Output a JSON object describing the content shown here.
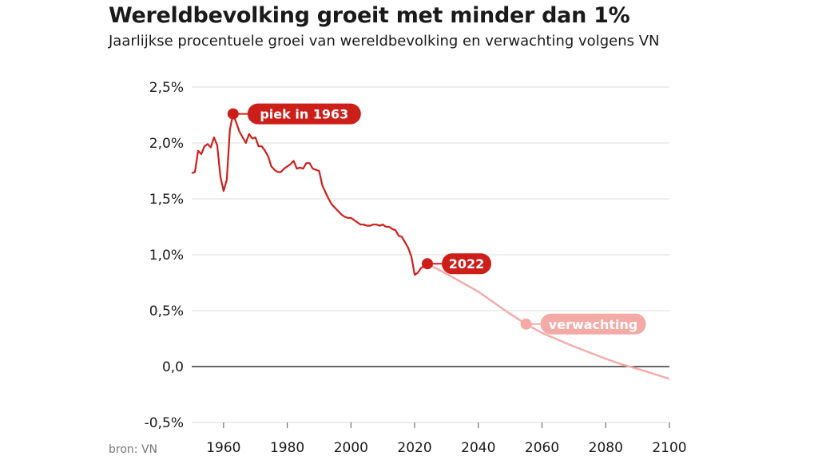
{
  "header": {
    "title": "Wereldbevolking groeit met minder dan 1%",
    "subtitle": "Jaarlijkse procentuele groei van wereldbevolking en verwachting volgens VN"
  },
  "footer": {
    "source": "bron: VN"
  },
  "colors": {
    "historic": "#cc1f1a",
    "forecast": "#f4aaa6",
    "grid": "#dddddd",
    "zero": "#333333"
  },
  "chart_data": {
    "type": "line",
    "title": "Wereldbevolking groeit met minder dan 1%",
    "subtitle": "Jaarlijkse procentuele groei van wereldbevolking en verwachting volgens VN",
    "xlabel": "",
    "ylabel": "",
    "xlim": [
      1950,
      2100
    ],
    "ylim": [
      -0.5,
      2.5
    ],
    "x_ticks": [
      1960,
      1980,
      2000,
      2020,
      2040,
      2060,
      2080,
      2100
    ],
    "x_tick_labels": [
      "1960",
      "1980",
      "2000",
      "2020",
      "2040",
      "2060",
      "2080",
      "2100"
    ],
    "y_ticks": [
      -0.5,
      0,
      0.5,
      1.0,
      1.5,
      2.0,
      2.5
    ],
    "y_tick_labels": [
      "-0,5%",
      "0,0",
      "0,5%",
      "1,0%",
      "1,5%",
      "2,0%",
      "2,5%"
    ],
    "grid": true,
    "series": [
      {
        "key": "historic",
        "x": [
          1950,
          1951,
          1952,
          1953,
          1954,
          1955,
          1956,
          1957,
          1958,
          1959,
          1960,
          1961,
          1962,
          1963,
          1964,
          1965,
          1966,
          1967,
          1968,
          1969,
          1970,
          1971,
          1972,
          1973,
          1974,
          1975,
          1976,
          1977,
          1978,
          1979,
          1980,
          1981,
          1982,
          1983,
          1984,
          1985,
          1986,
          1987,
          1988,
          1989,
          1990,
          1991,
          1992,
          1993,
          1994,
          1995,
          1996,
          1997,
          1998,
          1999,
          2000,
          2001,
          2002,
          2003,
          2004,
          2005,
          2006,
          2007,
          2008,
          2009,
          2010,
          2011,
          2012,
          2013,
          2014,
          2015,
          2016,
          2017,
          2018,
          2019,
          2020,
          2021,
          2022,
          2023
        ],
        "values": [
          1.73,
          1.74,
          1.93,
          1.9,
          1.97,
          1.99,
          1.96,
          2.05,
          1.98,
          1.7,
          1.57,
          1.67,
          2.12,
          2.26,
          2.18,
          2.1,
          2.05,
          2.0,
          2.08,
          2.04,
          2.05,
          1.97,
          1.97,
          1.93,
          1.88,
          1.79,
          1.76,
          1.74,
          1.74,
          1.77,
          1.79,
          1.81,
          1.84,
          1.77,
          1.78,
          1.77,
          1.82,
          1.82,
          1.77,
          1.76,
          1.75,
          1.62,
          1.56,
          1.5,
          1.45,
          1.42,
          1.39,
          1.36,
          1.34,
          1.33,
          1.33,
          1.31,
          1.29,
          1.27,
          1.27,
          1.26,
          1.26,
          1.27,
          1.27,
          1.26,
          1.27,
          1.25,
          1.25,
          1.23,
          1.22,
          1.17,
          1.16,
          1.11,
          1.06,
          0.98,
          0.82,
          0.84,
          0.88,
          0.9
        ]
      },
      {
        "key": "forecast",
        "x": [
          2024,
          2030,
          2040,
          2050,
          2055,
          2060,
          2070,
          2080,
          2085,
          2090,
          2100
        ],
        "values": [
          0.92,
          0.83,
          0.67,
          0.47,
          0.38,
          0.3,
          0.18,
          0.07,
          0.02,
          -0.02,
          -0.11
        ]
      }
    ],
    "annotations": [
      {
        "x": 1963,
        "y": 2.26,
        "label": "piek in 1963",
        "style": "historic"
      },
      {
        "x": 2024,
        "y": 0.92,
        "label": "2022",
        "style": "historic"
      },
      {
        "x": 2055,
        "y": 0.38,
        "label": "verwachting",
        "style": "forecast"
      }
    ]
  }
}
